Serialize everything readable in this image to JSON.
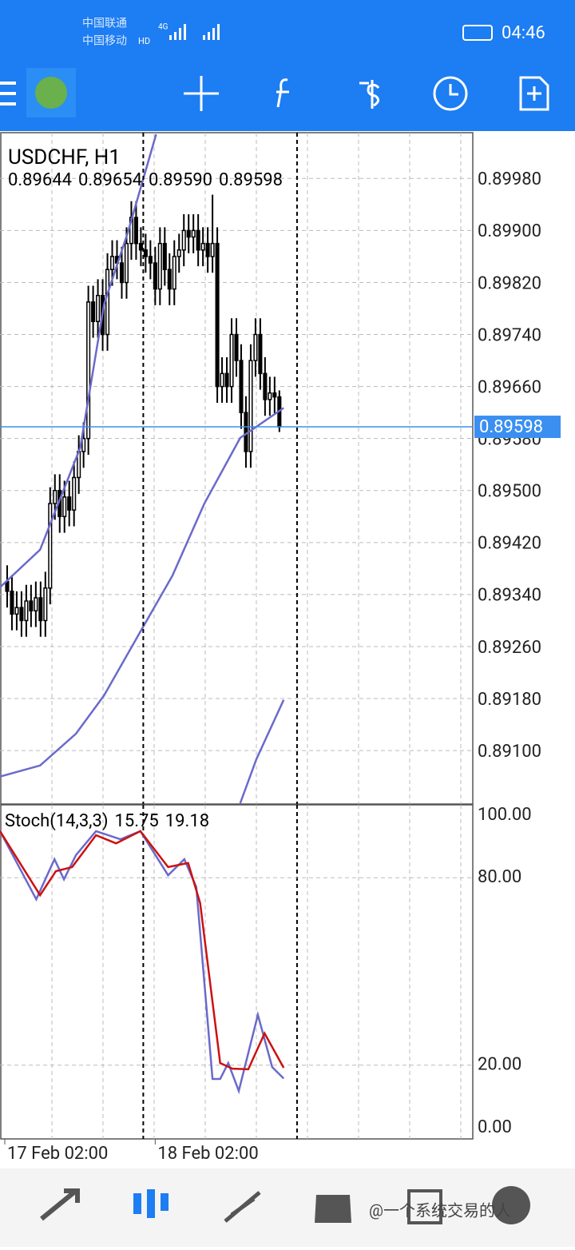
{
  "status_bar": {
    "carrier_1": "中国联通",
    "carrier_2": "中国移动",
    "network": "4G",
    "hd": "HD",
    "time": "04:46"
  },
  "chart_data": [
    {
      "type": "candlestick",
      "title": "USDCHF, H1",
      "quote_labels": [
        "0.89644",
        "0.89654",
        "0.89590",
        "0.89598"
      ],
      "open": [
        0.8936,
        0.89345,
        0.8931,
        0.8932,
        0.893,
        0.8933,
        0.89315,
        0.89335,
        0.893,
        0.8935,
        0.8948,
        0.895,
        0.8946,
        0.8949,
        0.8947,
        0.8952,
        0.8956,
        0.8958,
        0.8979,
        0.8976,
        0.898,
        0.8974,
        0.8984,
        0.8986,
        0.8985,
        0.8982,
        0.8988,
        0.8992,
        0.8988,
        0.8987,
        0.8986,
        0.8985,
        0.8981,
        0.8988,
        0.8984,
        0.8981,
        0.8986,
        0.8987,
        0.899,
        0.8989,
        0.899,
        0.8987,
        0.8988,
        0.8986,
        0.8988,
        0.8966,
        0.8968,
        0.8966,
        0.8974,
        0.897,
        0.8962,
        0.8956,
        0.897,
        0.8974,
        0.8968,
        0.8964,
        0.8965,
        0.89644
      ],
      "high": [
        0.89385,
        0.8937,
        0.89345,
        0.89345,
        0.89355,
        0.89355,
        0.8936,
        0.8936,
        0.89375,
        0.89505,
        0.89525,
        0.89525,
        0.89515,
        0.89515,
        0.89545,
        0.89585,
        0.89605,
        0.89815,
        0.89815,
        0.89825,
        0.89825,
        0.89865,
        0.89885,
        0.89885,
        0.89875,
        0.89905,
        0.89945,
        0.89945,
        0.89905,
        0.89895,
        0.89885,
        0.89875,
        0.89905,
        0.89905,
        0.89865,
        0.89885,
        0.89895,
        0.89925,
        0.89925,
        0.89925,
        0.89925,
        0.89905,
        0.89905,
        0.89955,
        0.89905,
        0.89705,
        0.89705,
        0.89765,
        0.89765,
        0.89725,
        0.89645,
        0.89725,
        0.89765,
        0.89765,
        0.89705,
        0.89675,
        0.89675,
        0.89654
      ],
      "low": [
        0.8932,
        0.89285,
        0.89285,
        0.89275,
        0.89275,
        0.8929,
        0.8929,
        0.89275,
        0.89275,
        0.89325,
        0.89455,
        0.89435,
        0.89435,
        0.89445,
        0.89445,
        0.89495,
        0.89535,
        0.89555,
        0.89735,
        0.89735,
        0.89715,
        0.89715,
        0.89815,
        0.89825,
        0.89795,
        0.89795,
        0.89855,
        0.89855,
        0.89845,
        0.89835,
        0.89825,
        0.89785,
        0.89785,
        0.89815,
        0.89785,
        0.89785,
        0.89835,
        0.89845,
        0.89865,
        0.89865,
        0.89845,
        0.89845,
        0.89835,
        0.89835,
        0.89635,
        0.89635,
        0.89635,
        0.89635,
        0.89675,
        0.89595,
        0.89535,
        0.89535,
        0.89675,
        0.89655,
        0.89615,
        0.89615,
        0.89619,
        0.8959
      ],
      "close": [
        0.89345,
        0.8931,
        0.8932,
        0.893,
        0.8933,
        0.89315,
        0.89335,
        0.893,
        0.8935,
        0.8948,
        0.895,
        0.8946,
        0.8949,
        0.8947,
        0.8952,
        0.8956,
        0.8958,
        0.8979,
        0.8976,
        0.898,
        0.8974,
        0.8984,
        0.8986,
        0.8985,
        0.8982,
        0.8988,
        0.8992,
        0.8988,
        0.8987,
        0.8986,
        0.8985,
        0.8981,
        0.8988,
        0.8984,
        0.8981,
        0.8986,
        0.8987,
        0.899,
        0.8989,
        0.899,
        0.8987,
        0.8988,
        0.8986,
        0.8988,
        0.8966,
        0.8968,
        0.8966,
        0.8974,
        0.897,
        0.8962,
        0.8956,
        0.897,
        0.8974,
        0.8968,
        0.8964,
        0.8965,
        0.89644,
        0.89598
      ],
      "xlim": [
        -1.5,
        97.5
      ],
      "ylim": [
        0.89019,
        0.90048
      ],
      "yticks": [
        {
          "value": 0.8998,
          "label": "0.89980"
        },
        {
          "value": 0.899,
          "label": "0.89900"
        },
        {
          "value": 0.8982,
          "label": "0.89820"
        },
        {
          "value": 0.8974,
          "label": "0.89740"
        },
        {
          "value": 0.8966,
          "label": "0.89660"
        },
        {
          "value": 0.8958,
          "label": "0.89580"
        },
        {
          "value": 0.895,
          "label": "0.89500"
        },
        {
          "value": 0.8942,
          "label": "0.89420"
        },
        {
          "value": 0.8934,
          "label": "0.89340"
        },
        {
          "value": 0.8926,
          "label": "0.89260"
        },
        {
          "value": 0.8918,
          "label": "0.89180"
        },
        {
          "value": 0.891,
          "label": "0.89100"
        }
      ],
      "xticks": [
        {
          "value": -0.5,
          "label": "17 Feb 02:00"
        },
        {
          "value": 31,
          "label": "18 Feb 02:00"
        }
      ],
      "current_price": {
        "value": 0.89598,
        "label": "0.89598"
      },
      "separators": [
        28.5,
        60.7
      ],
      "grid": true,
      "series": [
        {
          "color": "#6a6acb",
          "x": [
            -1.5,
            6.9,
            15.3,
            20.3,
            25.3,
            31.2
          ],
          "values": [
            0.89351,
            0.89409,
            0.89566,
            0.89787,
            0.89898,
            0.90048
          ]
        },
        {
          "color": "#6a6acb",
          "x": [
            -1.5,
            6.9,
            14.4,
            20.3,
            27.9,
            34.6,
            41.3,
            48.8,
            57.9
          ],
          "values": [
            0.8906,
            0.89077,
            0.89126,
            0.89185,
            0.89283,
            0.89369,
            0.8948,
            0.89581,
            0.89627
          ]
        },
        {
          "color": "#6a6acb",
          "x": [
            48.8,
            52.2,
            57.9
          ],
          "values": [
            0.89019,
            0.89087,
            0.89178
          ]
        }
      ]
    },
    {
      "type": "line",
      "title": "Stoch(14,3,3)",
      "current_labels": [
        "15.75",
        "19.18"
      ],
      "xlim": [
        -1.5,
        97.5
      ],
      "ylim": [
        0,
        100
      ],
      "yticks": [
        {
          "value": 100,
          "label": "100.00"
        },
        {
          "value": 80,
          "label": "80.00"
        },
        {
          "value": 20,
          "label": "20.00"
        },
        {
          "value": 0,
          "label": "0.00"
        }
      ],
      "series": [
        {
          "color": "#6a6acb",
          "x": [
            -1.5,
            6.1,
            9.9,
            11.9,
            14.4,
            18.6,
            23.7,
            27.9,
            33.7,
            37.1,
            39.6,
            43,
            44.6,
            46.3,
            48.5,
            52.5,
            55.5,
            57.9
          ],
          "values": [
            94.9,
            73.1,
            85.9,
            79.5,
            87.2,
            94.9,
            92.3,
            94.9,
            80.8,
            85.9,
            77,
            15.6,
            15.6,
            20.7,
            11.8,
            36.1,
            19.4,
            15.75
          ]
        },
        {
          "color": "#cc1111",
          "x": [
            -1.5,
            6.9,
            10.2,
            13.6,
            18.6,
            22.8,
            27.9,
            33.7,
            37.9,
            40.4,
            44.6,
            47.2,
            50.5,
            53.9,
            57.9
          ],
          "values": [
            94.9,
            74.4,
            82.1,
            83.4,
            93.6,
            91,
            94.9,
            83.4,
            84.7,
            71.9,
            20.7,
            18.9,
            18.7,
            30.2,
            19.18
          ]
        }
      ]
    }
  ],
  "watermark": "@一个系统交易的人"
}
